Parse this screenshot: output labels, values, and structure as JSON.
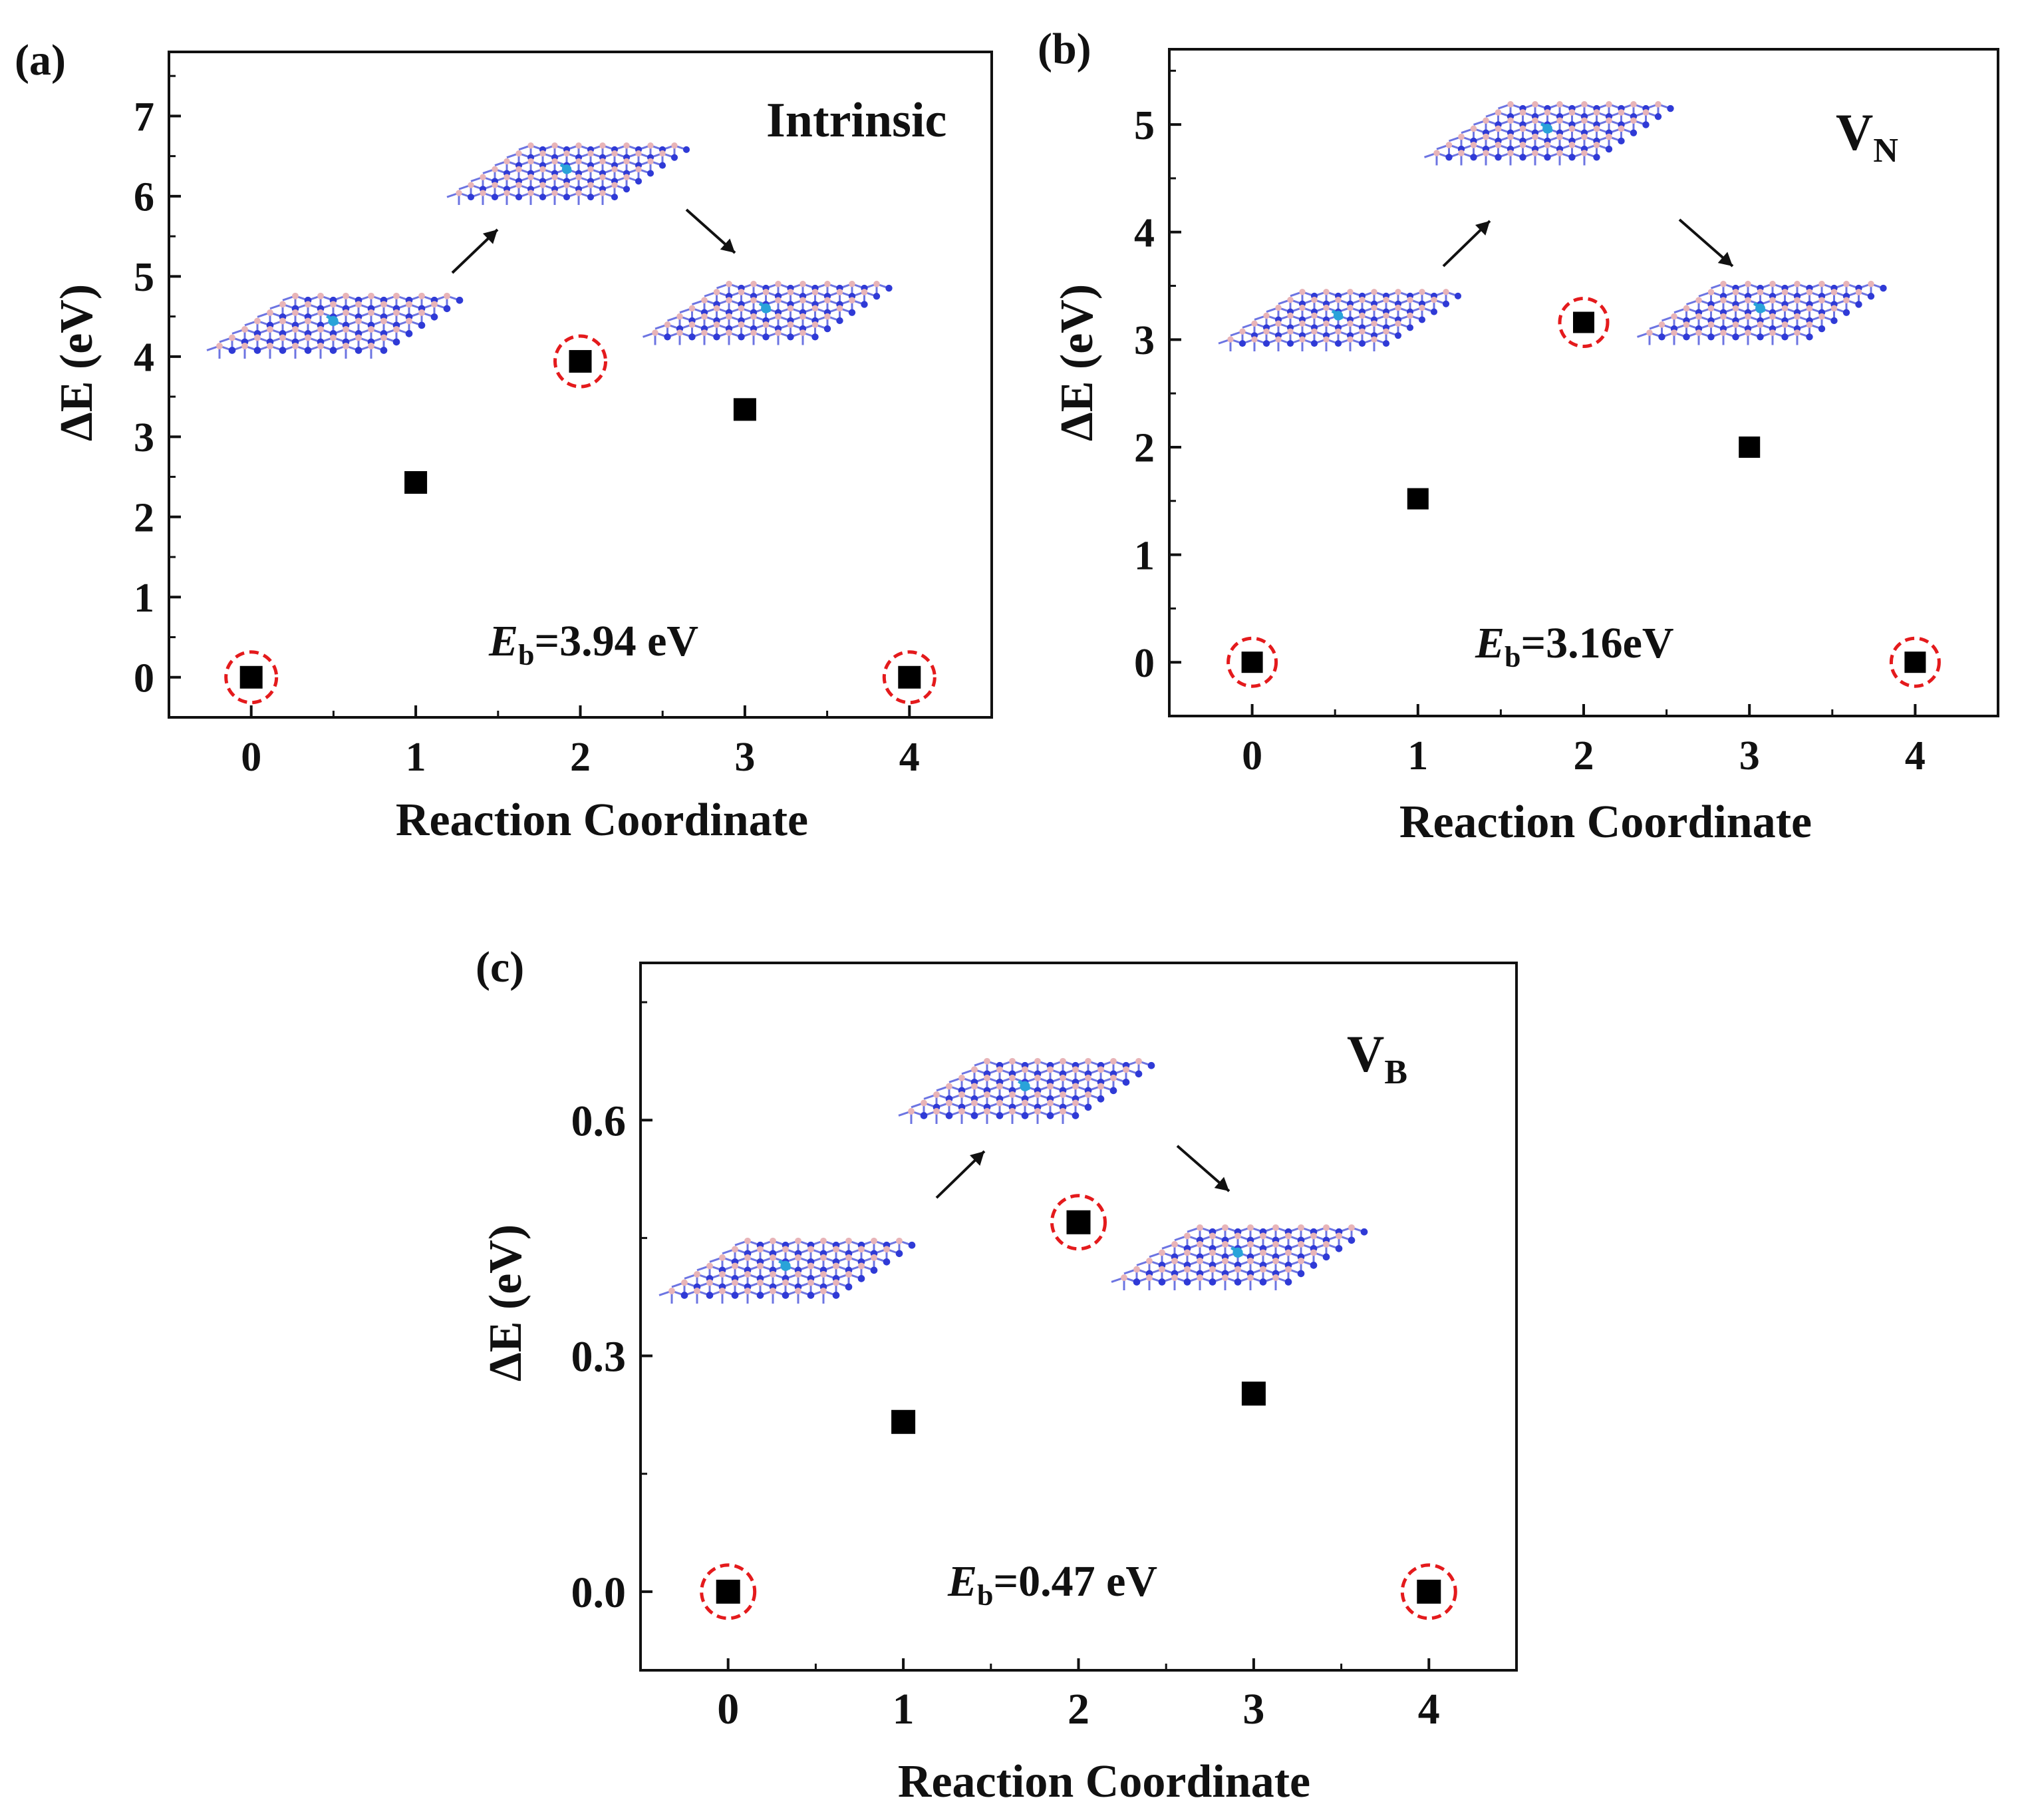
{
  "colors": {
    "point": "#000000",
    "highlight": "#e41a1c",
    "nitrogen": "#2f3ad6",
    "boron": "#e8b4b8",
    "bond": "#2f3ad6",
    "defect": "#29a3d9",
    "frame": "#111111"
  },
  "chart_data": [
    {
      "type": "scatter",
      "panel_label": "(a)",
      "title": "Intrinsic",
      "title_sub": "",
      "xlabel": "Reaction Coordinate",
      "ylabel": "ΔE (eV)",
      "x": [
        0,
        1,
        2,
        3,
        4
      ],
      "y": [
        0,
        2.43,
        3.94,
        3.34,
        0
      ],
      "highlighted_x": [
        0,
        2,
        4
      ],
      "xlim": [
        -0.5,
        4.5
      ],
      "ylim": [
        -0.5,
        7.8
      ],
      "xticks": [
        0,
        1,
        2,
        3,
        4
      ],
      "yticks": [
        0,
        1,
        2,
        3,
        4,
        5,
        6,
        7
      ],
      "ytick_labels": [
        "0",
        "1",
        "2",
        "3",
        "4",
        "5",
        "6",
        "7"
      ],
      "annotation": {
        "prefix": "E",
        "sub": "b",
        "text": "=3.94 eV"
      }
    },
    {
      "type": "scatter",
      "panel_label": "(b)",
      "title": "V",
      "title_sub": "N",
      "xlabel": "Reaction Coordinate",
      "ylabel": "ΔE (eV)",
      "x": [
        0,
        1,
        2,
        3,
        4
      ],
      "y": [
        0,
        1.52,
        3.16,
        2.0,
        0
      ],
      "highlighted_x": [
        0,
        2,
        4
      ],
      "xlim": [
        -0.5,
        4.5
      ],
      "ylim": [
        -0.5,
        5.7
      ],
      "xticks": [
        0,
        1,
        2,
        3,
        4
      ],
      "yticks": [
        0,
        1,
        2,
        3,
        4,
        5
      ],
      "ytick_labels": [
        "0",
        "1",
        "2",
        "3",
        "4",
        "5"
      ],
      "annotation": {
        "prefix": "E",
        "sub": "b",
        "text": "=3.16eV"
      }
    },
    {
      "type": "scatter",
      "panel_label": "(c)",
      "title": "V",
      "title_sub": "B",
      "xlabel": "Reaction Coordinate",
      "ylabel": "ΔE (eV)",
      "x": [
        0,
        1,
        2,
        3,
        4
      ],
      "y": [
        0,
        0.216,
        0.47,
        0.252,
        0
      ],
      "highlighted_x": [
        0,
        2,
        4
      ],
      "xlim": [
        -0.5,
        4.5
      ],
      "ylim": [
        -0.1,
        0.8
      ],
      "xticks": [
        0,
        1,
        2,
        3,
        4
      ],
      "yticks": [
        0.0,
        0.3,
        0.6
      ],
      "ytick_labels": [
        "0.0",
        "0.3",
        "0.6"
      ],
      "annotation": {
        "prefix": "E",
        "sub": "b",
        "text": "=0.47 eV"
      }
    }
  ]
}
